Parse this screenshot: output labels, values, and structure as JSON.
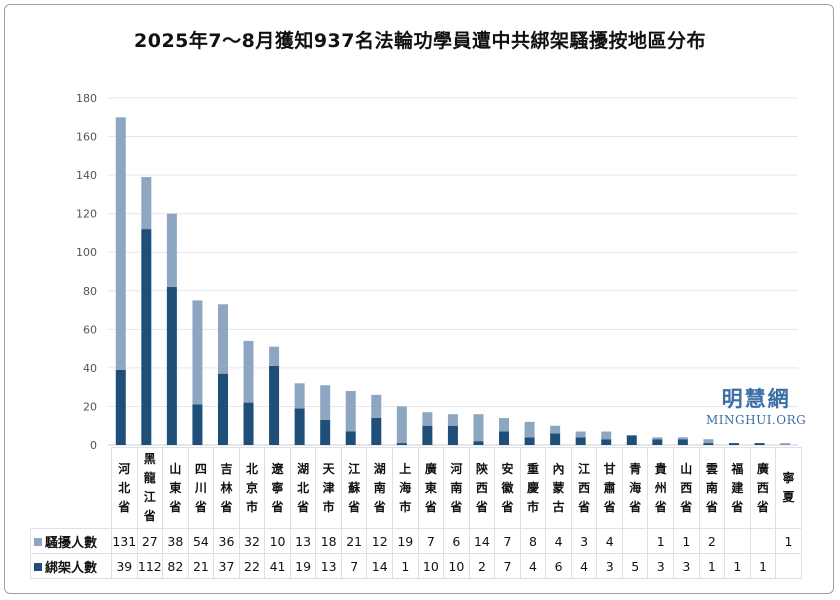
{
  "chart_data": {
    "type": "bar",
    "stacked": true,
    "title": "2025年7～8月獲知937名法輪功學員遭中共綁架騷擾按地區分布",
    "categories": [
      "河北省",
      "黑龍江省",
      "山東省",
      "四川省",
      "吉林省",
      "北京市",
      "遼寧省",
      "湖北省",
      "天津市",
      "江蘇省",
      "湖南省",
      "上海市",
      "廣東省",
      "河南省",
      "陝西省",
      "安徽省",
      "重慶市",
      "內蒙古",
      "江西省",
      "甘肅省",
      "青海省",
      "貴州省",
      "山西省",
      "雲南省",
      "福建省",
      "廣西省",
      "寧夏"
    ],
    "series": [
      {
        "name": "綁架人數",
        "color": "#1f4e79",
        "values": [
          39,
          112,
          82,
          21,
          37,
          22,
          41,
          19,
          13,
          7,
          14,
          1,
          10,
          10,
          2,
          7,
          4,
          6,
          4,
          3,
          5,
          3,
          3,
          1,
          1,
          1,
          null
        ]
      },
      {
        "name": "騷擾人數",
        "color": "#8fa6c2",
        "values": [
          131,
          27,
          38,
          54,
          36,
          32,
          10,
          13,
          18,
          21,
          12,
          19,
          7,
          6,
          14,
          7,
          8,
          4,
          3,
          4,
          null,
          1,
          1,
          2,
          null,
          null,
          1
        ]
      }
    ],
    "ylim": [
      0,
      180
    ],
    "yticks": [
      0,
      20,
      40,
      60,
      80,
      100,
      120,
      140,
      160,
      180
    ],
    "grid": true,
    "legend": "data-table"
  },
  "watermark": {
    "cn": "明慧網",
    "en": "MINGHUI.ORG"
  }
}
